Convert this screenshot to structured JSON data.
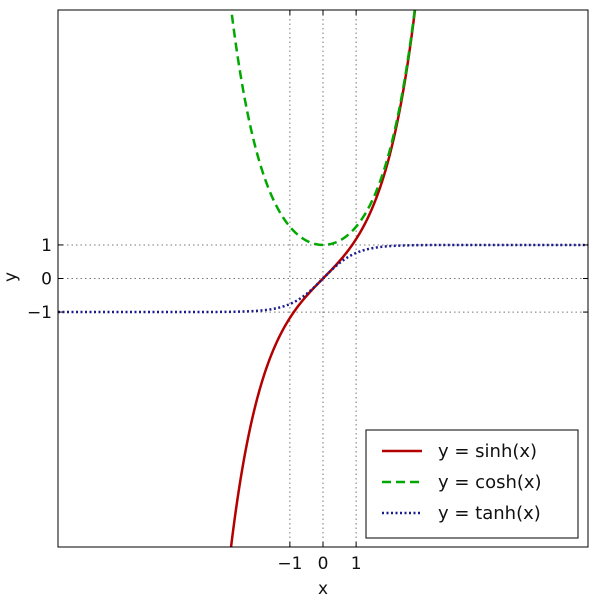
{
  "chart_data": {
    "type": "line",
    "xlabel": "x",
    "ylabel": "y",
    "xlim": [
      -8,
      8
    ],
    "ylim": [
      -8,
      8
    ],
    "grid": true,
    "grid_lines": {
      "x": [
        -1,
        0,
        1
      ],
      "y": [
        -1,
        0,
        1
      ]
    },
    "x_ticks": [
      -1,
      0,
      1
    ],
    "y_ticks": [
      -1,
      0,
      1
    ],
    "x_tick_labels": [
      "−1",
      "0",
      "1"
    ],
    "y_tick_labels": [
      "−1",
      "0",
      "1"
    ],
    "legend_position": "bottom-right",
    "series": [
      {
        "name": "y = sinh(x)",
        "function": "sinh",
        "color": "#b30000",
        "style": "solid",
        "x": [
          -2.8,
          -2,
          -1,
          0,
          1,
          2,
          2.8
        ],
        "y": [
          -8.19,
          -3.63,
          -1.18,
          0,
          1.18,
          3.63,
          8.19
        ]
      },
      {
        "name": "y = cosh(x)",
        "function": "cosh",
        "color": "#00a800",
        "style": "dashed",
        "x": [
          -2.8,
          -2,
          -1,
          0,
          1,
          2,
          2.8
        ],
        "y": [
          8.25,
          3.76,
          1.54,
          1,
          1.54,
          3.76,
          8.25
        ]
      },
      {
        "name": "y = tanh(x)",
        "function": "tanh",
        "color": "#1a1a8c",
        "style": "dotted",
        "x": [
          -8,
          -2,
          -1,
          0,
          1,
          2,
          8
        ],
        "y": [
          -1,
          -0.96,
          -0.76,
          0,
          0.76,
          0.96,
          1
        ]
      }
    ]
  }
}
